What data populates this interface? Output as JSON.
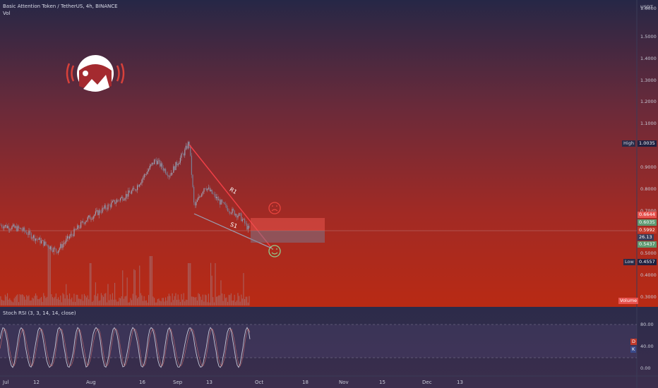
{
  "header": {
    "symbol_line": "Basic Attention Token / TetherUS, 4h, BINANCE",
    "vol_label": "Vol"
  },
  "price_axis": {
    "currency": "USDT",
    "ticks": [
      "1.6000",
      "1.5000",
      "1.4000",
      "1.3000",
      "1.2000",
      "1.1000",
      "1.0000",
      "0.9000",
      "0.8000",
      "0.7000",
      "0.6000",
      "0.5000",
      "0.4000",
      "0.3000"
    ]
  },
  "markers": {
    "high_label": "High",
    "high_value": "1.0035",
    "low_label": "Low",
    "low_value": "0.4557",
    "price_tags": [
      "0.6644",
      "0.6035",
      "0.5992",
      "26.13",
      "0.5437"
    ],
    "volume_label": "Volume"
  },
  "annotations": {
    "resistance_label": "R1",
    "support_label": "S1",
    "sad_face": "☹",
    "happy_face": "☺"
  },
  "indicator": {
    "title": "Stoch RSI (3, 3, 14, 14, close)",
    "ticks": [
      "80.00",
      "40.00",
      "0.00"
    ],
    "d_label": "D",
    "k_label": "K"
  },
  "x_axis": {
    "labels": [
      "Jul",
      "12",
      "Aug",
      "16",
      "Sep",
      "13",
      "Oct",
      "18",
      "Nov",
      "15",
      "Dec",
      "13"
    ]
  },
  "colors": {
    "candle_up": "#9fa3b5",
    "candle_down": "#7a7f95",
    "resistance": "#f03f46",
    "support": "#9aa0b4",
    "target_box": "#e8534f",
    "stop_box": "#6b6f84",
    "face": "#8fcf8f"
  },
  "chart_data": {
    "type": "candlestick",
    "price_range": [
      0.3,
      1.6
    ],
    "key_points": [
      {
        "date": "Jul 1",
        "price": 0.62
      },
      {
        "date": "Jul 22",
        "price": 0.5
      },
      {
        "date": "Aug 1",
        "price": 0.64
      },
      {
        "date": "Aug 20",
        "price": 0.78
      },
      {
        "date": "Sep 1",
        "price": 0.93
      },
      {
        "date": "Sep 6",
        "price": 1.0035
      },
      {
        "date": "Sep 7",
        "price": 0.7
      },
      {
        "date": "Sep 13",
        "price": 0.8
      },
      {
        "date": "Sep 21",
        "price": 0.7
      },
      {
        "date": "Sep 28",
        "price": 0.6
      }
    ],
    "high": 1.0035,
    "low": 0.4557,
    "last": 0.5992
  }
}
